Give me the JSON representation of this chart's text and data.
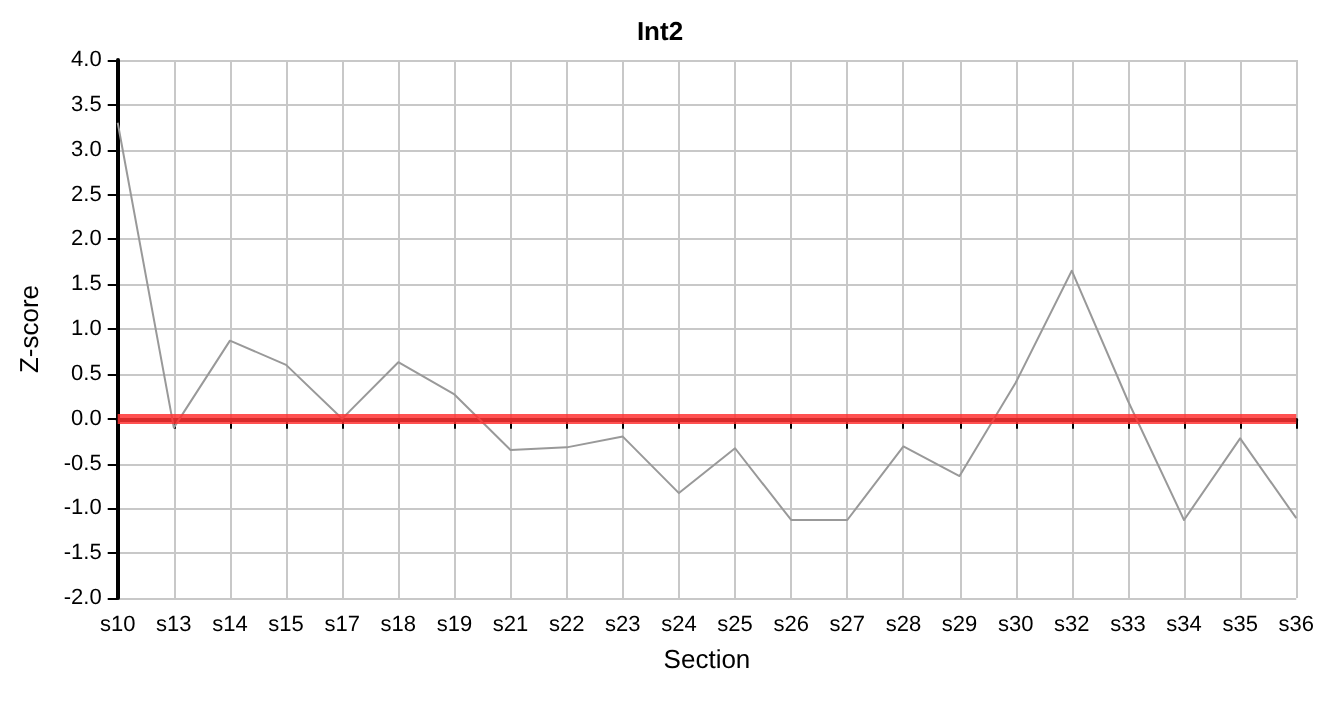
{
  "chart_data": {
    "type": "line",
    "title": "Int2",
    "xlabel": "Section",
    "ylabel": "Z-score",
    "categories": [
      "s10",
      "s13",
      "s14",
      "s15",
      "s17",
      "s18",
      "s19",
      "s21",
      "s22",
      "s23",
      "s24",
      "s25",
      "s26",
      "s27",
      "s28",
      "s29",
      "s30",
      "s32",
      "s33",
      "s34",
      "s35",
      "s36"
    ],
    "series": [
      {
        "color": "#999999",
        "values": [
          3.3,
          -0.1,
          0.87,
          0.6,
          0.0,
          0.63,
          0.27,
          -0.35,
          -0.32,
          -0.2,
          -0.83,
          -0.33,
          -1.13,
          -1.13,
          -0.31,
          -0.64,
          0.4,
          1.65,
          0.2,
          -1.13,
          -0.22,
          -1.11
        ]
      }
    ],
    "ylim": [
      -2,
      4
    ],
    "yticks": [
      {
        "value": -2,
        "label": "-2.0"
      },
      {
        "value": -1.5,
        "label": "-1.5"
      },
      {
        "value": -1,
        "label": "-1.0"
      },
      {
        "value": -0.5,
        "label": "-0.5"
      },
      {
        "value": 0,
        "label": "0.0"
      },
      {
        "value": 0.5,
        "label": "0.5"
      },
      {
        "value": 1,
        "label": "1.0"
      },
      {
        "value": 1.5,
        "label": "1.5"
      },
      {
        "value": 2,
        "label": "2.0"
      },
      {
        "value": 2.5,
        "label": "2.5"
      },
      {
        "value": 3,
        "label": "3.0"
      },
      {
        "value": 3.5,
        "label": "3.5"
      },
      {
        "value": 4,
        "label": "4.0"
      }
    ],
    "ref_lines": [
      {
        "axis": "y",
        "value": 0,
        "color": "#ff3333"
      }
    ],
    "grid": true,
    "marker": "none",
    "line_style": "solid"
  }
}
